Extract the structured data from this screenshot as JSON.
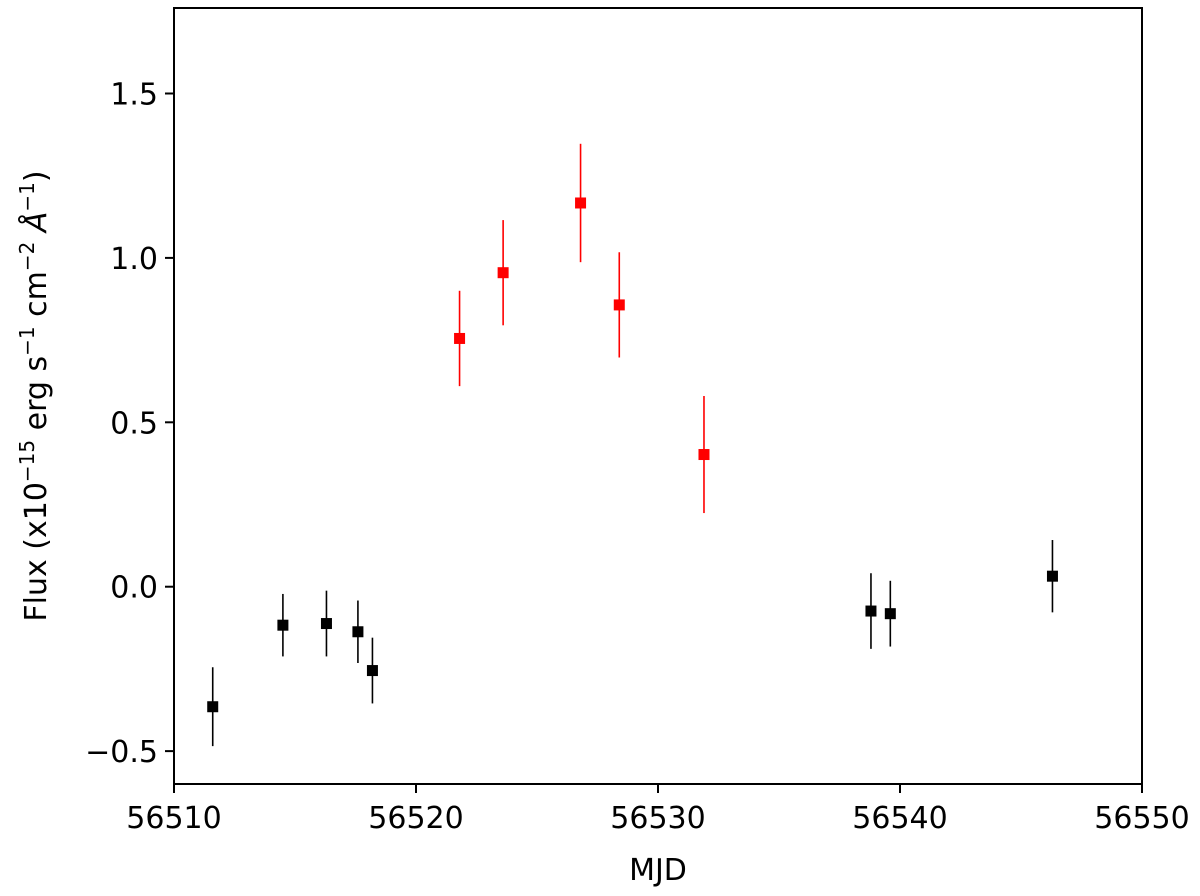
{
  "chart_data": {
    "type": "scatter",
    "xlabel": "MJD",
    "ylabel": {
      "prefix": "Flux (x10",
      "exp1": "−15",
      "mid1": " erg s",
      "exp2": "−1",
      "mid2": " cm",
      "exp3": "−2",
      "mid3": " Å",
      "exp4": "−1",
      "suffix": ")"
    },
    "xlim": [
      56510,
      56550
    ],
    "ylim": [
      -0.6,
      1.76
    ],
    "xticks": [
      56510,
      56520,
      56530,
      56540,
      56550
    ],
    "xtick_labels": [
      "56510",
      "56520",
      "56530",
      "56540",
      "56550"
    ],
    "yticks": [
      -0.5,
      0.0,
      0.5,
      1.0,
      1.5
    ],
    "ytick_labels": [
      "−0.5",
      "0.0",
      "0.5",
      "1.0",
      "1.5"
    ],
    "grid": false,
    "series": [
      {
        "color": "#000000",
        "points": [
          {
            "x": 56511.6,
            "y": -0.365,
            "err": 0.12
          },
          {
            "x": 56514.5,
            "y": -0.117,
            "err": 0.095
          },
          {
            "x": 56516.3,
            "y": -0.112,
            "err": 0.1
          },
          {
            "x": 56517.6,
            "y": -0.137,
            "err": 0.095
          },
          {
            "x": 56518.2,
            "y": -0.255,
            "err": 0.1
          },
          {
            "x": 56538.8,
            "y": -0.074,
            "err": 0.115
          },
          {
            "x": 56539.6,
            "y": -0.082,
            "err": 0.1
          },
          {
            "x": 56546.3,
            "y": 0.032,
            "err": 0.11
          }
        ]
      },
      {
        "color": "#ff0000",
        "points": [
          {
            "x": 56521.8,
            "y": 0.755,
            "err": 0.145
          },
          {
            "x": 56523.6,
            "y": 0.955,
            "err": 0.16
          },
          {
            "x": 56526.8,
            "y": 1.167,
            "err": 0.18
          },
          {
            "x": 56528.4,
            "y": 0.857,
            "err": 0.16
          },
          {
            "x": 56531.9,
            "y": 0.402,
            "err": 0.178
          }
        ]
      }
    ]
  }
}
